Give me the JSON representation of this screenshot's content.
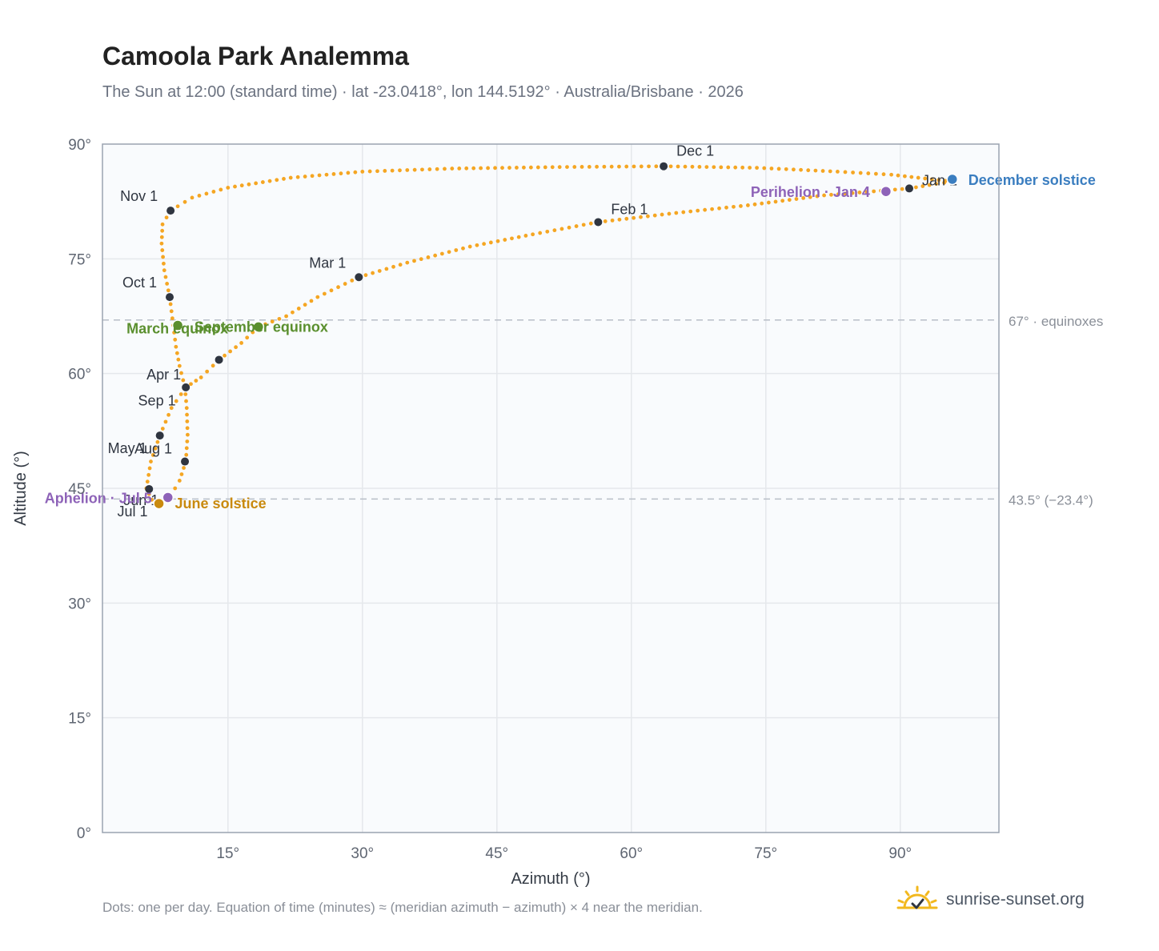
{
  "title": "Camoola Park Analemma",
  "subtitle": "The Sun at 12:00 (standard time) · lat -23.0418°, lon 144.5192° · Australia/Brisbane · 2026",
  "footnote": "Dots: one per day. Equation of time (minutes) ≈ (meridian azimuth − azimuth) × 4 near the meridian.",
  "brand": {
    "name": "sunrise-sunset.org",
    "icon": "sun-icon",
    "color": "#f2b81e"
  },
  "colors": {
    "path": "#f5a623",
    "month_marker": "#2f3540",
    "equinox": "#5a8f2e",
    "june_solstice": "#c98a0e",
    "december_solstice": "#3b7ec0",
    "apsis": "#8e63b8",
    "grid": "#e5e8ec",
    "frame": "#9aa3b0",
    "plot_bg": "#f9fbfd",
    "ref_line": "#b8bec8"
  },
  "chart_data": {
    "type": "scatter",
    "xlabel": "Azimuth (°)",
    "ylabel": "Altitude (°)",
    "xlim": [
      1,
      101
    ],
    "ylim": [
      0,
      90
    ],
    "x_ticks": [
      15,
      30,
      45,
      60,
      75,
      90
    ],
    "x_tick_labels": [
      "15°",
      "30°",
      "45°",
      "60°",
      "75°",
      "90°"
    ],
    "y_ticks": [
      0,
      15,
      30,
      45,
      60,
      75,
      90
    ],
    "y_tick_labels": [
      "0°",
      "15°",
      "30°",
      "45°",
      "60°",
      "75°",
      "90°"
    ],
    "grid": true,
    "series": [
      {
        "points": [
          [
            91.0,
            84.2
          ],
          [
            81.5,
            83.3
          ],
          [
            73.0,
            82.0
          ],
          [
            65.0,
            81.0
          ],
          [
            56.3,
            79.8
          ],
          [
            49.0,
            78.2
          ],
          [
            42.0,
            76.6
          ],
          [
            35.0,
            74.5
          ],
          [
            29.6,
            72.6
          ],
          [
            25.0,
            70.0
          ],
          [
            21.5,
            67.5
          ],
          [
            18.4,
            66.1
          ],
          [
            16.5,
            64.0
          ],
          [
            14.0,
            61.8
          ],
          [
            12.0,
            59.5
          ],
          [
            10.3,
            58.2
          ],
          [
            8.7,
            55.5
          ],
          [
            7.4,
            51.9
          ],
          [
            6.4,
            48.5
          ],
          [
            5.9,
            45.0
          ],
          [
            6.5,
            43.5
          ],
          [
            7.5,
            43.1
          ],
          [
            8.6,
            44.0
          ],
          [
            9.6,
            46.0
          ],
          [
            10.3,
            48.5
          ],
          [
            10.5,
            52.0
          ],
          [
            10.4,
            55.5
          ],
          [
            10.2,
            58.2
          ],
          [
            9.6,
            61.0
          ],
          [
            9.2,
            63.5
          ],
          [
            8.9,
            66.3
          ],
          [
            8.5,
            70.0
          ],
          [
            7.9,
            73.5
          ],
          [
            7.6,
            77.0
          ],
          [
            7.7,
            79.5
          ],
          [
            8.6,
            81.3
          ],
          [
            11.0,
            83.0
          ],
          [
            15.0,
            84.3
          ],
          [
            22.0,
            85.6
          ],
          [
            30.0,
            86.4
          ],
          [
            40.0,
            86.8
          ],
          [
            52.0,
            87.0
          ],
          [
            63.6,
            87.1
          ],
          [
            74.0,
            86.9
          ],
          [
            83.0,
            86.4
          ],
          [
            89.0,
            86.0
          ],
          [
            92.0,
            85.6
          ],
          [
            95.8,
            85.1
          ],
          [
            94.0,
            84.8
          ],
          [
            91.0,
            84.2
          ]
        ]
      }
    ],
    "month_markers": [
      {
        "label": "Jan 1",
        "x": 91.0,
        "y": 84.2
      },
      {
        "label": "Feb 1",
        "x": 56.3,
        "y": 79.8
      },
      {
        "label": "Mar 1",
        "x": 29.6,
        "y": 72.6
      },
      {
        "label": "Apr 1",
        "x": 10.3,
        "y": 58.2
      },
      {
        "label": "May 1",
        "x": 7.4,
        "y": 51.9
      },
      {
        "label": "Jun 1",
        "x": 6.2,
        "y": 44.9
      },
      {
        "label": "Jul 1",
        "x": 7.3,
        "y": 43.0
      },
      {
        "label": "Aug 1",
        "x": 10.2,
        "y": 48.5
      },
      {
        "label": "Sep 1",
        "x": 14.0,
        "y": 61.8
      },
      {
        "label": "Oct 1",
        "x": 8.5,
        "y": 70.0
      },
      {
        "label": "Nov 1",
        "x": 8.6,
        "y": 81.3
      },
      {
        "label": "Dec 1",
        "x": 63.6,
        "y": 87.1
      }
    ],
    "events": [
      {
        "label": "March equinox",
        "x": 9.4,
        "y": 66.3,
        "kind": "equinox"
      },
      {
        "label": "September equinox",
        "x": 18.4,
        "y": 66.1,
        "kind": "equinox"
      },
      {
        "label": "June solstice",
        "x": 7.3,
        "y": 43.0,
        "kind": "june_solstice"
      },
      {
        "label": "December solstice",
        "x": 95.8,
        "y": 85.4,
        "kind": "december_solstice"
      },
      {
        "label": "Perihelion · Jan 4",
        "x": 88.4,
        "y": 83.8,
        "kind": "apsis"
      },
      {
        "label": "Aphelion · Jul 5",
        "x": 8.3,
        "y": 43.8,
        "kind": "apsis"
      }
    ],
    "reference_lines": [
      {
        "y": 67.0,
        "label": "67° · equinoxes"
      },
      {
        "y": 43.6,
        "label": "43.5° (−23.4°)"
      }
    ]
  }
}
